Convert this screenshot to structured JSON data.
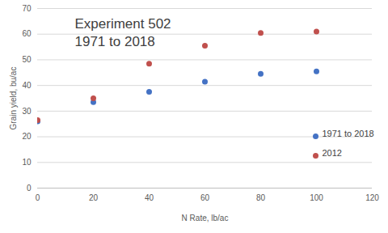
{
  "chart_data": {
    "type": "scatter",
    "title": "Experiment 502",
    "subtitle": "1971 to 2018",
    "x_label": "N Rate, lb/ac",
    "y_label": "Grain yield, bu/ac",
    "x": [
      0,
      20,
      40,
      60,
      80,
      100
    ],
    "series": [
      {
        "name": "1971 to 2018",
        "color": "#4472c4",
        "values": [
          26,
          33.5,
          37.5,
          41.5,
          44.5,
          45.5
        ]
      },
      {
        "name": "2012",
        "color": "#c0504d",
        "values": [
          26.5,
          35,
          48.5,
          55.5,
          60.5,
          61
        ]
      }
    ],
    "xlim": [
      0,
      120
    ],
    "xticks": [
      0,
      20,
      40,
      60,
      80,
      100,
      120
    ],
    "ylim": [
      0,
      70
    ],
    "yticks": [
      0,
      10,
      20,
      30,
      40,
      50,
      60,
      70
    ],
    "grid": true,
    "legend": "lower right",
    "marker": "circle"
  }
}
